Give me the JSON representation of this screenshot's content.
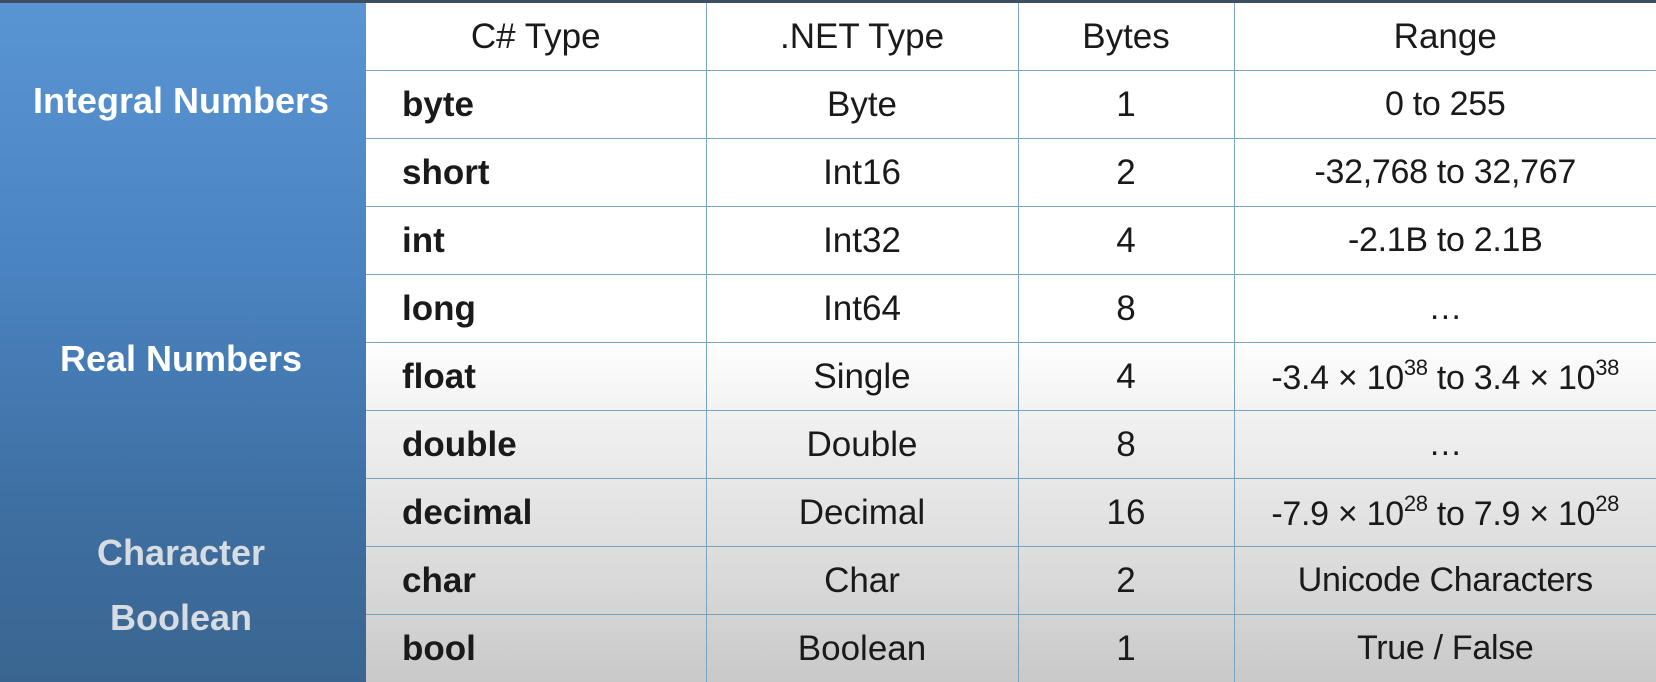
{
  "table": {
    "headers": [
      "C# Type",
      ".NET Type",
      "Bytes",
      "Range"
    ],
    "rows": [
      {
        "csharp": "byte",
        "dotnet": "Byte",
        "bytes": "1",
        "range": "0 to 255"
      },
      {
        "csharp": "short",
        "dotnet": "Int16",
        "bytes": "2",
        "range": "-32,768 to 32,767"
      },
      {
        "csharp": "int",
        "dotnet": "Int32",
        "bytes": "4",
        "range": "-2.1B to 2.1B"
      },
      {
        "csharp": "long",
        "dotnet": "Int64",
        "bytes": "8",
        "range": "…"
      },
      {
        "csharp": "float",
        "dotnet": "Single",
        "bytes": "4",
        "range": {
          "lo_mantissa": "-3.4 × 10",
          "lo_exp": "38",
          "sep": " to ",
          "hi_mantissa": "3.4 × 10",
          "hi_exp": "38"
        }
      },
      {
        "csharp": "double",
        "dotnet": "Double",
        "bytes": "8",
        "range": "…"
      },
      {
        "csharp": "decimal",
        "dotnet": "Decimal",
        "bytes": "16",
        "range": {
          "lo_mantissa": "-7.9 × 10",
          "lo_exp": "28",
          "sep": " to ",
          "hi_mantissa": "7.9 × 10",
          "hi_exp": "28"
        }
      },
      {
        "csharp": "char",
        "dotnet": "Char",
        "bytes": "2",
        "range": "Unicode Characters"
      },
      {
        "csharp": "bool",
        "dotnet": "Boolean",
        "bytes": "1",
        "range": "True / False"
      }
    ]
  },
  "categories": {
    "integral": "Integral Numbers",
    "real": "Real Numbers",
    "character": "Character",
    "boolean": "Boolean"
  },
  "colors": {
    "sidebar": "#4a83c0",
    "grid_lines": "#7aa3bf",
    "muted_label": "#d7dce2"
  }
}
